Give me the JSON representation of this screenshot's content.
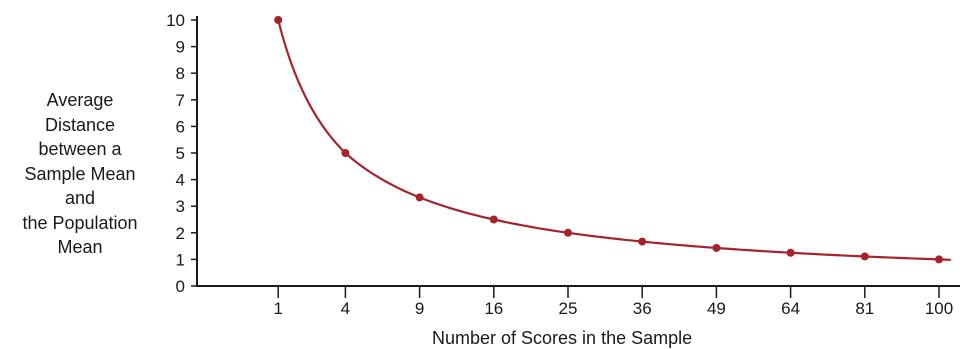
{
  "chart_data": {
    "type": "line",
    "title": "",
    "xlabel": "Number of Scores in the Sample",
    "ylabel_lines": [
      "Average",
      "Distance",
      "between a",
      "Sample Mean",
      "and",
      "the Population",
      "Mean"
    ],
    "x_ticks": [
      1,
      4,
      9,
      16,
      25,
      36,
      49,
      64,
      81,
      100
    ],
    "y_ticks": [
      0,
      1,
      2,
      3,
      4,
      5,
      6,
      7,
      8,
      9,
      10
    ],
    "xlim": [
      0,
      103
    ],
    "ylim": [
      0,
      10
    ],
    "x_scale": "sqrt",
    "grid": false,
    "series": [
      {
        "x": [
          1,
          4,
          9,
          16,
          25,
          36,
          49,
          64,
          81,
          100
        ],
        "y": [
          10,
          5,
          3.33,
          2.5,
          2,
          1.67,
          1.43,
          1.25,
          1.11,
          1
        ]
      }
    ],
    "line_color": "#a6232d",
    "axis_color": "#1a1a1a"
  }
}
